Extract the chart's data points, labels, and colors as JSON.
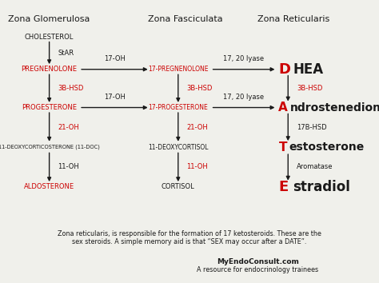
{
  "background_color": "#f0f0eb",
  "red_color": "#cc0000",
  "black_color": "#1a1a1a",
  "zone_titles": [
    "Zona Glomerulosa",
    "Zona Fasciculata",
    "Zona Reticularis"
  ],
  "footer_text1": "Zona reticularis, is responsible for the formation of 17 ketosteroids. These are the",
  "footer_text2": "sex steroids. A simple memory aid is that “SEX may occur after a DATE”.",
  "footer_brand": "MyEndoConsult.com",
  "footer_sub": "A resource for endocrinology trainees"
}
